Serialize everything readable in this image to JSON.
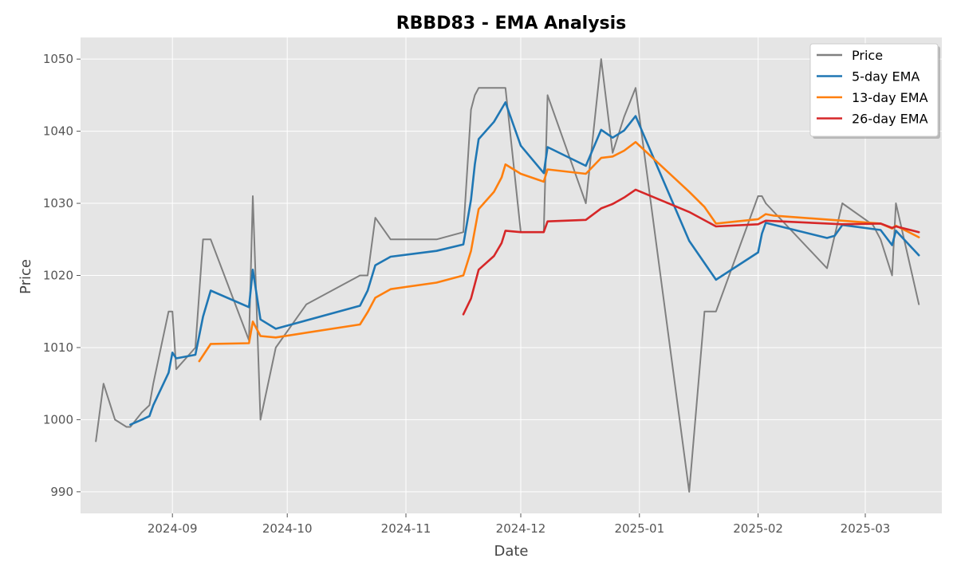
{
  "chart_data": {
    "type": "line",
    "title": "RBBD83 - EMA Analysis",
    "xlabel": "Date",
    "ylabel": "Price",
    "x_axis_type": "date",
    "xlim": [
      "2024-08-08",
      "2025-03-21"
    ],
    "ylim": [
      987,
      1053
    ],
    "x_ticks": [
      "2024-09-01",
      "2024-10-01",
      "2024-11-01",
      "2024-12-01",
      "2025-01-01",
      "2025-02-01",
      "2025-03-01"
    ],
    "x_tick_labels": [
      "2024-09",
      "2024-10",
      "2024-11",
      "2024-12",
      "2025-01",
      "2025-02",
      "2025-03"
    ],
    "y_ticks": [
      990,
      1000,
      1010,
      1020,
      1030,
      1040,
      1050
    ],
    "grid": true,
    "legend_position": "top-right",
    "series": [
      {
        "name": "Price",
        "color": "#808080",
        "points": [
          [
            "2024-08-12",
            997
          ],
          [
            "2024-08-14",
            1005
          ],
          [
            "2024-08-17",
            1000
          ],
          [
            "2024-08-20",
            999
          ],
          [
            "2024-08-21",
            999
          ],
          [
            "2024-08-24",
            1001
          ],
          [
            "2024-08-26",
            1002
          ],
          [
            "2024-08-27",
            1005
          ],
          [
            "2024-08-31",
            1015
          ],
          [
            "2024-09-01",
            1015
          ],
          [
            "2024-09-02",
            1007
          ],
          [
            "2024-09-07",
            1010
          ],
          [
            "2024-09-09",
            1025
          ],
          [
            "2024-09-11",
            1025
          ],
          [
            "2024-09-21",
            1011
          ],
          [
            "2024-09-22",
            1031
          ],
          [
            "2024-09-24",
            1000
          ],
          [
            "2024-09-28",
            1010
          ],
          [
            "2024-10-06",
            1016
          ],
          [
            "2024-10-20",
            1020
          ],
          [
            "2024-10-22",
            1020
          ],
          [
            "2024-10-24",
            1028
          ],
          [
            "2024-10-28",
            1025
          ],
          [
            "2024-11-09",
            1025
          ],
          [
            "2024-11-16",
            1026
          ],
          [
            "2024-11-18",
            1043
          ],
          [
            "2024-11-19",
            1045
          ],
          [
            "2024-11-20",
            1046
          ],
          [
            "2024-11-27",
            1046
          ],
          [
            "2024-12-01",
            1026
          ],
          [
            "2024-12-07",
            1026
          ],
          [
            "2024-12-08",
            1045
          ],
          [
            "2024-12-18",
            1030
          ],
          [
            "2024-12-22",
            1050
          ],
          [
            "2024-12-25",
            1037
          ],
          [
            "2024-12-28",
            1042
          ],
          [
            "2024-12-31",
            1046
          ],
          [
            "2025-01-14",
            990
          ],
          [
            "2025-01-18",
            1015
          ],
          [
            "2025-01-21",
            1015
          ],
          [
            "2025-02-01",
            1031
          ],
          [
            "2025-02-02",
            1031
          ],
          [
            "2025-02-03",
            1030
          ],
          [
            "2025-02-19",
            1021
          ],
          [
            "2025-02-23",
            1030
          ],
          [
            "2025-03-03",
            1027
          ],
          [
            "2025-03-05",
            1025
          ],
          [
            "2025-03-08",
            1020
          ],
          [
            "2025-03-09",
            1030
          ],
          [
            "2025-03-15",
            1016
          ]
        ]
      },
      {
        "name": "5-day EMA",
        "color": "#1f77b4",
        "points": [
          [
            "2024-08-21",
            999.3
          ],
          [
            "2024-08-24",
            1000
          ],
          [
            "2024-08-26",
            1000.5
          ],
          [
            "2024-08-27",
            1002
          ],
          [
            "2024-08-31",
            1006.5
          ],
          [
            "2024-09-01",
            1009.3
          ],
          [
            "2024-09-02",
            1008.5
          ],
          [
            "2024-09-07",
            1009
          ],
          [
            "2024-09-09",
            1014.3
          ],
          [
            "2024-09-11",
            1017.9
          ],
          [
            "2024-09-21",
            1015.6
          ],
          [
            "2024-09-22",
            1020.8
          ],
          [
            "2024-09-24",
            1013.9
          ],
          [
            "2024-09-28",
            1012.6
          ],
          [
            "2024-10-20",
            1015.8
          ],
          [
            "2024-10-22",
            1017.9
          ],
          [
            "2024-10-24",
            1021.4
          ],
          [
            "2024-10-28",
            1022.6
          ],
          [
            "2024-11-09",
            1023.4
          ],
          [
            "2024-11-16",
            1024.3
          ],
          [
            "2024-11-18",
            1030.5
          ],
          [
            "2024-11-19",
            1035.4
          ],
          [
            "2024-11-20",
            1038.9
          ],
          [
            "2024-11-24",
            1041.3
          ],
          [
            "2024-11-27",
            1044
          ],
          [
            "2024-12-01",
            1038
          ],
          [
            "2024-12-07",
            1034.2
          ],
          [
            "2024-12-08",
            1037.8
          ],
          [
            "2024-12-18",
            1035.2
          ],
          [
            "2024-12-22",
            1040.2
          ],
          [
            "2024-12-25",
            1039.1
          ],
          [
            "2024-12-28",
            1040.1
          ],
          [
            "2024-12-31",
            1042.1
          ],
          [
            "2025-01-14",
            1024.8
          ],
          [
            "2025-01-21",
            1019.4
          ],
          [
            "2025-02-01",
            1023.2
          ],
          [
            "2025-02-02",
            1025.8
          ],
          [
            "2025-02-03",
            1027.3
          ],
          [
            "2025-02-19",
            1025.2
          ],
          [
            "2025-02-21",
            1025.5
          ],
          [
            "2025-02-23",
            1027
          ],
          [
            "2025-03-05",
            1026.3
          ],
          [
            "2025-03-08",
            1024.2
          ],
          [
            "2025-03-09",
            1026.2
          ],
          [
            "2025-03-15",
            1022.8
          ]
        ]
      },
      {
        "name": "13-day EMA",
        "color": "#ff7f0e",
        "points": [
          [
            "2024-09-08",
            1008.1
          ],
          [
            "2024-09-11",
            1010.5
          ],
          [
            "2024-09-21",
            1010.6
          ],
          [
            "2024-09-22",
            1013.6
          ],
          [
            "2024-09-24",
            1011.6
          ],
          [
            "2024-09-28",
            1011.4
          ],
          [
            "2024-10-20",
            1013.2
          ],
          [
            "2024-10-22",
            1014.9
          ],
          [
            "2024-10-24",
            1016.9
          ],
          [
            "2024-10-28",
            1018.1
          ],
          [
            "2024-11-09",
            1019
          ],
          [
            "2024-11-16",
            1020
          ],
          [
            "2024-11-18",
            1023.4
          ],
          [
            "2024-11-20",
            1029.2
          ],
          [
            "2024-11-24",
            1031.6
          ],
          [
            "2024-11-26",
            1033.6
          ],
          [
            "2024-11-27",
            1035.4
          ],
          [
            "2024-12-01",
            1034.1
          ],
          [
            "2024-12-07",
            1033
          ],
          [
            "2024-12-08",
            1034.7
          ],
          [
            "2024-12-18",
            1034.1
          ],
          [
            "2024-12-22",
            1036.3
          ],
          [
            "2024-12-25",
            1036.5
          ],
          [
            "2024-12-28",
            1037.3
          ],
          [
            "2024-12-31",
            1038.5
          ],
          [
            "2025-01-14",
            1031.6
          ],
          [
            "2025-01-18",
            1029.5
          ],
          [
            "2025-01-21",
            1027.2
          ],
          [
            "2025-02-01",
            1027.8
          ],
          [
            "2025-02-03",
            1028.5
          ],
          [
            "2025-02-05",
            1028.3
          ],
          [
            "2025-02-23",
            1027.6
          ],
          [
            "2025-03-05",
            1027.2
          ],
          [
            "2025-03-08",
            1026.5
          ],
          [
            "2025-03-09",
            1026.9
          ],
          [
            "2025-03-15",
            1025.3
          ]
        ]
      },
      {
        "name": "26-day EMA",
        "color": "#d62728",
        "points": [
          [
            "2024-11-16",
            1014.6
          ],
          [
            "2024-11-18",
            1016.8
          ],
          [
            "2024-11-20",
            1020.8
          ],
          [
            "2024-11-24",
            1022.7
          ],
          [
            "2024-11-26",
            1024.5
          ],
          [
            "2024-11-27",
            1026.2
          ],
          [
            "2024-12-01",
            1026
          ],
          [
            "2024-12-07",
            1026
          ],
          [
            "2024-12-08",
            1027.5
          ],
          [
            "2024-12-18",
            1027.7
          ],
          [
            "2024-12-22",
            1029.3
          ],
          [
            "2024-12-25",
            1029.9
          ],
          [
            "2024-12-28",
            1030.8
          ],
          [
            "2024-12-31",
            1031.9
          ],
          [
            "2025-01-14",
            1028.8
          ],
          [
            "2025-01-21",
            1026.8
          ],
          [
            "2025-02-01",
            1027.1
          ],
          [
            "2025-02-03",
            1027.6
          ],
          [
            "2025-02-23",
            1027.1
          ],
          [
            "2025-03-05",
            1027.2
          ],
          [
            "2025-03-08",
            1026.6
          ],
          [
            "2025-03-09",
            1026.8
          ],
          [
            "2025-03-15",
            1026
          ]
        ]
      }
    ]
  }
}
